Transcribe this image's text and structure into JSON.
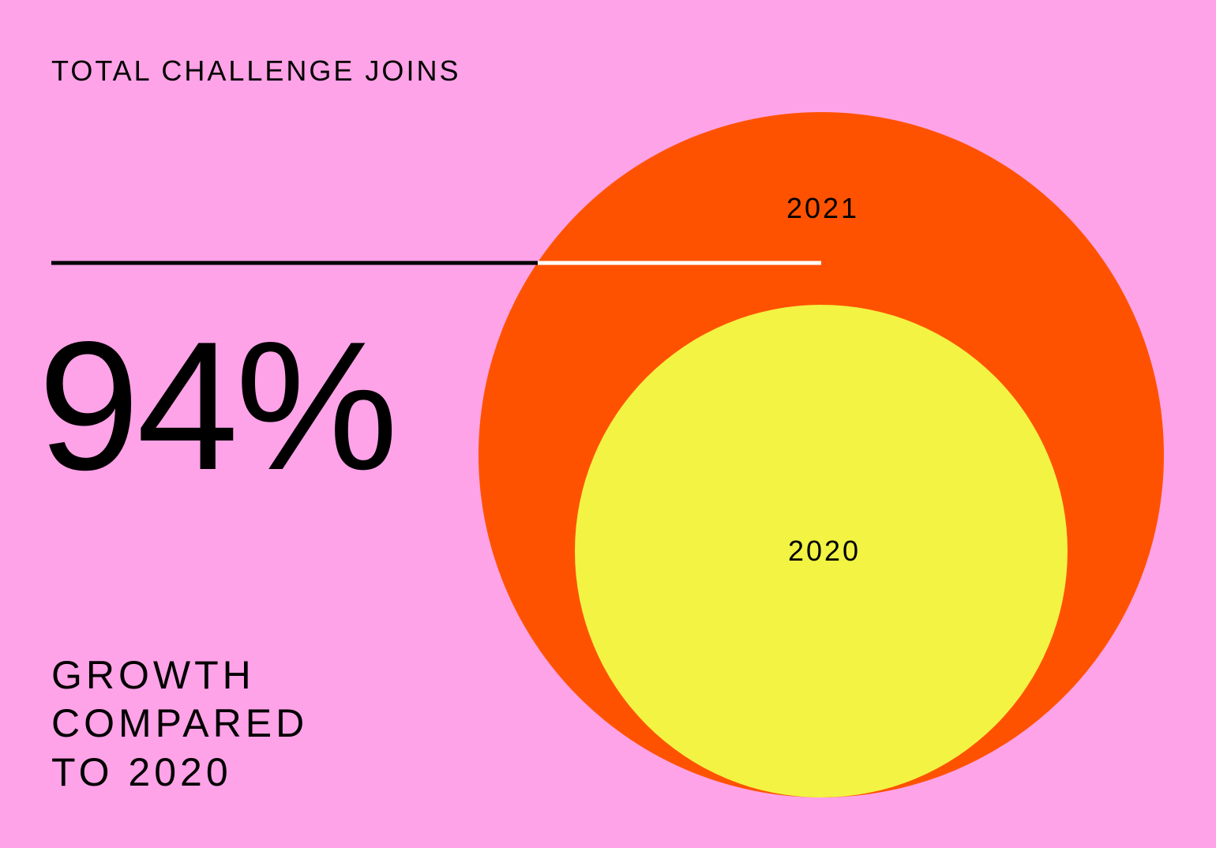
{
  "header": {
    "title": "TOTAL CHALLENGE JOINS"
  },
  "stat": {
    "value": "94%",
    "caption": [
      "GROWTH",
      "COMPARED",
      "TO 2020"
    ]
  },
  "circles": [
    {
      "label": "2021"
    },
    {
      "label": "2020"
    }
  ]
}
